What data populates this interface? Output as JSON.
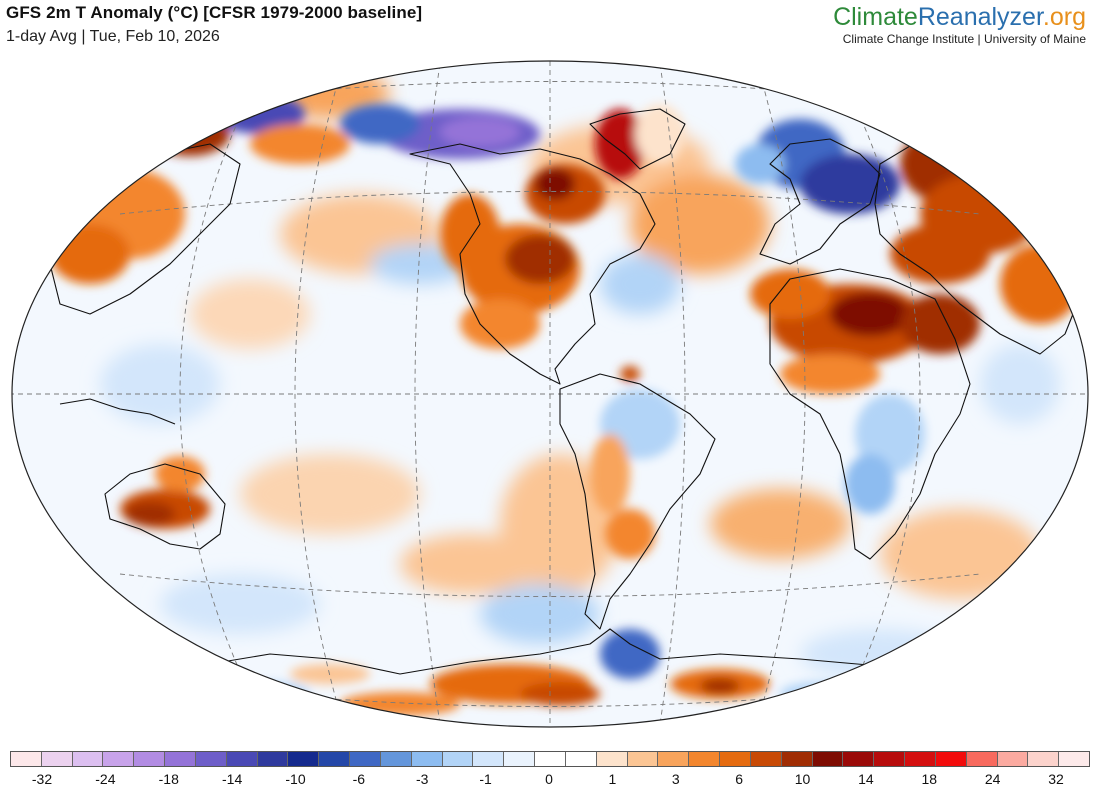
{
  "header": {
    "title": "GFS 2m T Anomaly (°C) [CFSR 1979-2000 baseline]",
    "subtitle": "1-day Avg | Tue, Feb 10, 2026"
  },
  "brand": {
    "part1": "Climate",
    "part2": "Reanalyzer",
    "part3": ".org",
    "sub": "Climate Change Institute | University of Maine",
    "colors": {
      "part1": "#2e8a3a",
      "part2": "#2a6fae",
      "part3": "#e8901c"
    }
  },
  "map": {
    "projection": "elliptical-world",
    "graticule": "dashed",
    "legend_placement": "bottom",
    "anomaly_regions": [
      {
        "region": "central-united-states",
        "anomaly": "warm",
        "intensity": "strong"
      },
      {
        "region": "hudson-bay-and-labrador",
        "anomaly": "warm",
        "intensity": "strong"
      },
      {
        "region": "greenland-west-coast",
        "anomaly": "warm",
        "intensity": "strong"
      },
      {
        "region": "north-africa-and-sahara",
        "anomaly": "warm",
        "intensity": "strong"
      },
      {
        "region": "middle-east",
        "anomaly": "warm",
        "intensity": "strong"
      },
      {
        "region": "russia-and-central-asia",
        "anomaly": "warm",
        "intensity": "strong"
      },
      {
        "region": "northeast-asia",
        "anomaly": "warm",
        "intensity": "moderate"
      },
      {
        "region": "australia-south-and-interior",
        "anomaly": "warm",
        "intensity": "moderate"
      },
      {
        "region": "east-antarctica",
        "anomaly": "warm",
        "intensity": "moderate"
      },
      {
        "region": "alaska-and-northwest-canada",
        "anomaly": "cold",
        "intensity": "strong"
      },
      {
        "region": "arctic-ocean-siberian-side",
        "anomaly": "cold",
        "intensity": "moderate"
      },
      {
        "region": "scandinavia-and-western-russia",
        "anomaly": "cold",
        "intensity": "strong"
      },
      {
        "region": "antarctic-peninsula",
        "anomaly": "cold",
        "intensity": "moderate"
      },
      {
        "region": "east-africa",
        "anomaly": "cold",
        "intensity": "weak"
      },
      {
        "region": "eastern-south-america",
        "anomaly": "cold",
        "intensity": "weak"
      }
    ]
  },
  "colorbar": {
    "swatches": [
      "#fde8ea",
      "#ecd2ef",
      "#dcbff0",
      "#c8a3ea",
      "#b28ce3",
      "#9473d8",
      "#6e5ec9",
      "#4a49b5",
      "#2f3a9e",
      "#152a8e",
      "#2447a8",
      "#3f68c4",
      "#6496db",
      "#8dbcf0",
      "#b2d4f7",
      "#d3e6fb",
      "#eaf3fd",
      "#ffffff",
      "#ffffff",
      "#fde3cc",
      "#fbc594",
      "#f8a45c",
      "#f3862e",
      "#e56b10",
      "#c84a05",
      "#a02d03",
      "#7e0c02",
      "#9a0a08",
      "#b70c0c",
      "#d40f0f",
      "#f20b0b",
      "#f86a5e",
      "#fbaaa0",
      "#fcd3cc",
      "#fdeaea"
    ],
    "labels": [
      "-32",
      "-24",
      "-18",
      "-14",
      "-10",
      "-6",
      "-3",
      "-1",
      "0",
      "1",
      "3",
      "6",
      "10",
      "14",
      "18",
      "24",
      "32"
    ]
  }
}
